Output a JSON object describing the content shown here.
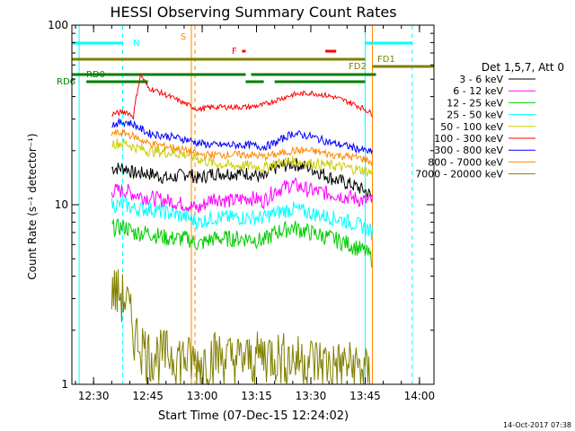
{
  "chart_data": {
    "type": "line",
    "title": "HESSI Observing Summary Count Rates",
    "xlabel": "Start Time (07-Dec-15 12:24:02)",
    "ylabel": "Count Rate (s⁻¹ detector⁻¹)",
    "y_scale": "log",
    "ylim": [
      1,
      100
    ],
    "xlim": [
      "12:24",
      "14:04"
    ],
    "x_ticks": [
      "12:30",
      "12:45",
      "13:00",
      "13:15",
      "13:30",
      "13:45",
      "14:00"
    ],
    "y_ticks": [
      "1",
      "10",
      "100"
    ],
    "legend_title": "Det 1,5,7, Att 0",
    "legend_position": "right",
    "timestamp": "14-Oct-2017 07:38",
    "series": [
      {
        "name": "3 - 6 keV",
        "color": "#000000",
        "x": [
          "12:35",
          "12:39",
          "12:41",
          "12:45",
          "12:51",
          "12:56",
          "12:59",
          "13:03",
          "13:08",
          "13:13",
          "13:17",
          "13:20",
          "13:25",
          "13:30",
          "13:36",
          "13:41",
          "13:45",
          "13:47"
        ],
        "y": [
          16,
          16,
          15,
          15,
          14,
          15,
          14,
          15,
          15,
          15,
          14,
          16,
          17,
          16,
          14,
          13,
          12,
          11
        ]
      },
      {
        "name": "6 - 12 keV",
        "color": "#ff00ff",
        "x": [
          "12:35",
          "12:39",
          "12:41",
          "12:45",
          "12:51",
          "12:56",
          "12:59",
          "13:03",
          "13:08",
          "13:13",
          "13:17",
          "13:20",
          "13:25",
          "13:30",
          "13:36",
          "13:41",
          "13:45",
          "13:47"
        ],
        "y": [
          12,
          12,
          11.5,
          11,
          10.5,
          10,
          9.5,
          11,
          10.5,
          11,
          10.5,
          12,
          13,
          12,
          11.5,
          11,
          10.5,
          10.5
        ]
      },
      {
        "name": "12 - 25 keV",
        "color": "#00cc00",
        "x": [
          "12:35",
          "12:39",
          "12:41",
          "12:45",
          "12:51",
          "12:56",
          "12:59",
          "13:03",
          "13:08",
          "13:13",
          "13:17",
          "13:20",
          "13:25",
          "13:30",
          "13:36",
          "13:41",
          "13:45",
          "13:47"
        ],
        "y": [
          7.5,
          7.5,
          7,
          7,
          6.5,
          6.5,
          6,
          6.5,
          6.5,
          6.5,
          6.3,
          7,
          7.5,
          7,
          6.5,
          6,
          5.5,
          5
        ]
      },
      {
        "name": "25 - 50 keV",
        "color": "#00ffff",
        "x": [
          "12:35",
          "12:39",
          "12:41",
          "12:45",
          "12:51",
          "12:56",
          "12:59",
          "13:03",
          "13:08",
          "13:13",
          "13:17",
          "13:20",
          "13:25",
          "13:30",
          "13:36",
          "13:41",
          "13:45",
          "13:47"
        ],
        "y": [
          10,
          10,
          9.5,
          9.5,
          9,
          8.5,
          8,
          8.5,
          8.5,
          8.5,
          8.5,
          9,
          9.5,
          9,
          8.5,
          8,
          7.5,
          7
        ]
      },
      {
        "name": "50 - 100 keV",
        "color": "#cccc00",
        "x": [
          "12:35",
          "12:39",
          "12:41",
          "12:45",
          "12:51",
          "12:56",
          "12:59",
          "13:03",
          "13:08",
          "13:13",
          "13:17",
          "13:20",
          "13:25",
          "13:30",
          "13:36",
          "13:41",
          "13:45",
          "13:47"
        ],
        "y": [
          22,
          22,
          21,
          20,
          19.5,
          19,
          18,
          17,
          16.5,
          16.5,
          16,
          17,
          17.5,
          17,
          16.5,
          16,
          15.5,
          15
        ]
      },
      {
        "name": "100 - 300 keV",
        "color": "#ff0000",
        "x": [
          "12:35",
          "12:39",
          "12:41",
          "12:43",
          "12:45",
          "12:51",
          "12:56",
          "12:59",
          "13:03",
          "13:08",
          "13:13",
          "13:17",
          "13:20",
          "13:25",
          "13:30",
          "13:36",
          "13:41",
          "13:45",
          "13:47"
        ],
        "y": [
          32,
          33,
          31,
          53,
          45,
          40,
          36,
          34,
          35,
          35,
          35,
          36,
          38,
          41,
          42,
          40,
          37,
          34,
          32
        ]
      },
      {
        "name": "300 - 800 keV",
        "color": "#0000ff",
        "x": [
          "12:35",
          "12:39",
          "12:41",
          "12:45",
          "12:51",
          "12:56",
          "12:59",
          "13:03",
          "13:08",
          "13:13",
          "13:17",
          "13:20",
          "13:25",
          "13:30",
          "13:36",
          "13:41",
          "13:45",
          "13:47"
        ],
        "y": [
          28,
          29,
          28,
          25,
          24,
          23,
          22,
          21.5,
          21.5,
          21.5,
          21,
          22,
          25,
          24,
          22,
          21,
          20,
          19.5
        ]
      },
      {
        "name": "800 - 7000 keV",
        "color": "#ff8800",
        "x": [
          "12:35",
          "12:39",
          "12:41",
          "12:45",
          "12:51",
          "12:56",
          "12:59",
          "13:03",
          "13:08",
          "13:13",
          "13:17",
          "13:20",
          "13:25",
          "13:30",
          "13:36",
          "13:41",
          "13:45",
          "13:47"
        ],
        "y": [
          25,
          25,
          24,
          22,
          21,
          20,
          19,
          19,
          19,
          19,
          18.5,
          19,
          20,
          20,
          19,
          18.5,
          18,
          17
        ]
      },
      {
        "name": "7000 - 20000 keV",
        "color": "#808000",
        "x": [
          "12:35",
          "12:39",
          "12:41",
          "12:45",
          "12:51",
          "12:56",
          "12:59",
          "13:03",
          "13:08",
          "13:13",
          "13:17",
          "13:20",
          "13:25",
          "13:30",
          "13:36",
          "13:41",
          "13:45",
          "13:47"
        ],
        "y": [
          3.5,
          3,
          2,
          1.5,
          1.5,
          1.4,
          1.3,
          1.5,
          1.4,
          1.4,
          1.5,
          1.5,
          1.4,
          1.4,
          1.3,
          1.3,
          1.2,
          1.1
        ]
      }
    ],
    "flags": [
      {
        "label": "N",
        "color": "#00ffff",
        "segments": [
          [
            "12:24",
            "12:38"
          ],
          [
            "13:45",
            "13:58"
          ]
        ]
      },
      {
        "label": "S",
        "color": "#ff8800",
        "segments": [
          [
            "12:57:30",
            "12:58:30"
          ]
        ]
      },
      {
        "label": "F",
        "color": "#ff0000",
        "segments": [
          [
            "13:11",
            "13:12"
          ],
          [
            "13:34",
            "13:37"
          ]
        ]
      },
      {
        "label": "FD1",
        "color": "#808000",
        "segments": [
          [
            "12:24",
            "13:45"
          ]
        ]
      },
      {
        "label": "FD2",
        "color": "#808000",
        "segments": [
          [
            "13:47",
            "14:04"
          ]
        ]
      },
      {
        "label": "RD0",
        "color": "#008000",
        "segments": [
          [
            "12:24",
            "13:12"
          ],
          [
            "13:13:30",
            "13:48"
          ]
        ]
      },
      {
        "label": "RD6",
        "color": "#008000",
        "segments": [
          [
            "12:28",
            "12:45"
          ],
          [
            "13:12",
            "13:17"
          ],
          [
            "13:20",
            "13:45"
          ]
        ]
      }
    ],
    "vertical_markers": [
      {
        "x": "12:26",
        "color": "#00ffff",
        "style": "solid"
      },
      {
        "x": "12:38",
        "color": "#00ffff",
        "style": "dashed"
      },
      {
        "x": "12:57",
        "color": "#ff8800",
        "style": "solid"
      },
      {
        "x": "12:58",
        "color": "#ff8800",
        "style": "dashed"
      },
      {
        "x": "13:45",
        "color": "#00ffff",
        "style": "solid"
      },
      {
        "x": "13:47",
        "color": "#ff8800",
        "style": "solid"
      },
      {
        "x": "13:58",
        "color": "#00ffff",
        "style": "dashed"
      }
    ]
  }
}
